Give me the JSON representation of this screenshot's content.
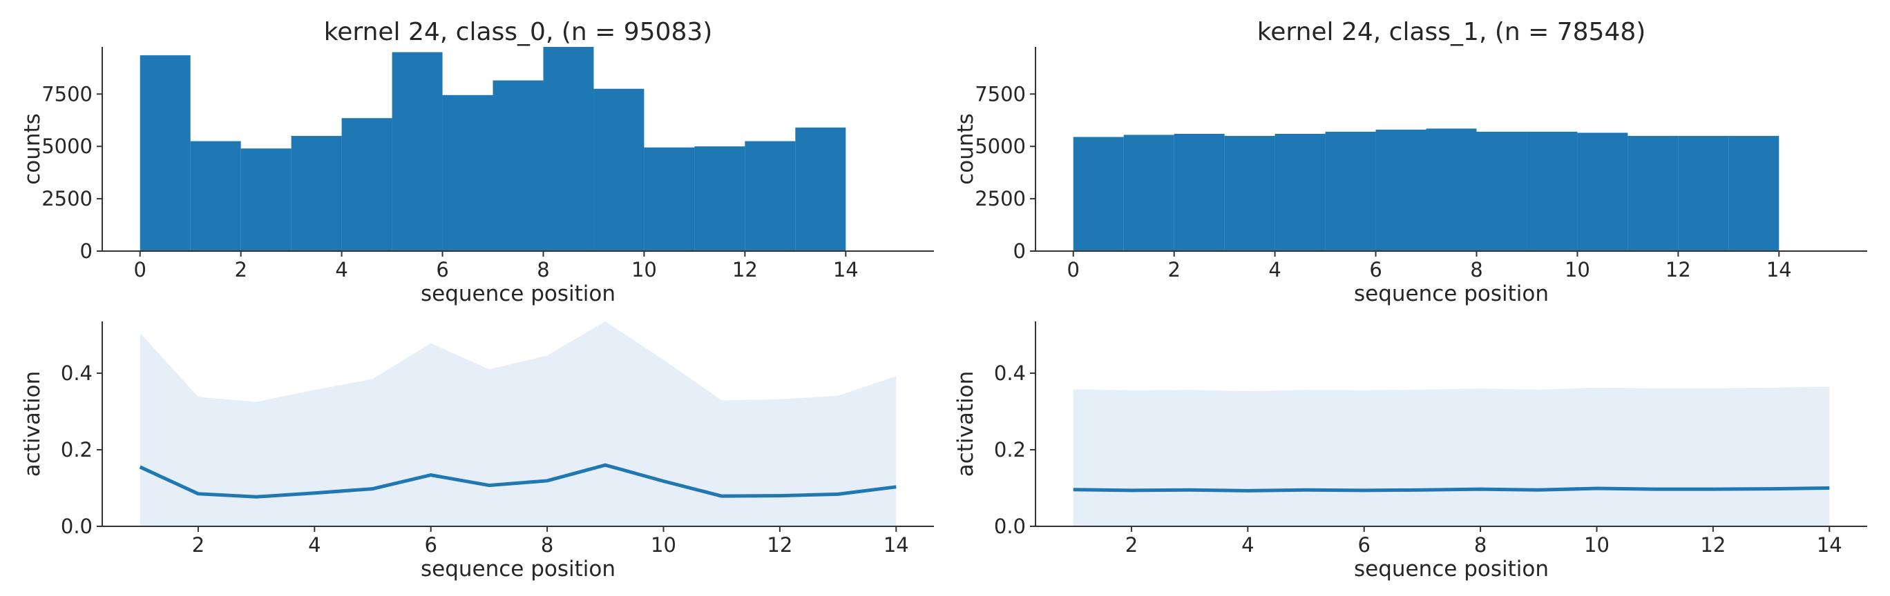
{
  "colors": {
    "bar": "#1f77b4",
    "line": "#1f77b4",
    "band": "#e6eff8"
  },
  "chart_data": [
    {
      "type": "bar",
      "title": "kernel 24, class_0, (n = 95083)",
      "xlabel": "sequence position",
      "ylabel": "counts",
      "bin_edges": [
        0,
        1,
        2,
        3,
        4,
        5,
        6,
        7,
        8,
        9,
        10,
        11,
        12,
        13,
        14
      ],
      "values": [
        9350,
        5250,
        4900,
        5500,
        6350,
        9500,
        7450,
        8150,
        9750,
        7750,
        4950,
        5000,
        5250,
        5900
      ],
      "xlim": [
        -0.75,
        15.75
      ],
      "ylim": [
        0,
        9750
      ],
      "xticks": [
        0,
        2,
        4,
        6,
        8,
        10,
        12,
        14
      ],
      "yticks": [
        0,
        2500,
        5000,
        7500
      ]
    },
    {
      "type": "bar",
      "title": "kernel 24, class_1, (n = 78548)",
      "xlabel": "sequence position",
      "ylabel": "counts",
      "bin_edges": [
        0,
        1,
        2,
        3,
        4,
        5,
        6,
        7,
        8,
        9,
        10,
        11,
        12,
        13,
        14
      ],
      "values": [
        5450,
        5550,
        5600,
        5500,
        5600,
        5700,
        5800,
        5850,
        5700,
        5700,
        5650,
        5500,
        5500,
        5500
      ],
      "xlim": [
        -0.75,
        15.75
      ],
      "ylim": [
        0,
        9750
      ],
      "xticks": [
        0,
        2,
        4,
        6,
        8,
        10,
        12,
        14
      ],
      "yticks": [
        0,
        2500,
        5000,
        7500
      ]
    },
    {
      "type": "line",
      "xlabel": "sequence position",
      "ylabel": "activation",
      "x": [
        1,
        2,
        3,
        4,
        5,
        6,
        7,
        8,
        9,
        10,
        11,
        12,
        13,
        14
      ],
      "mean": [
        0.155,
        0.085,
        0.077,
        0.087,
        0.098,
        0.134,
        0.107,
        0.119,
        0.16,
        0.118,
        0.079,
        0.08,
        0.084,
        0.103
      ],
      "upper": [
        0.505,
        0.338,
        0.325,
        0.356,
        0.385,
        0.478,
        0.41,
        0.446,
        0.535,
        0.435,
        0.329,
        0.332,
        0.341,
        0.392
      ],
      "xlim": [
        0.35,
        14.65
      ],
      "ylim": [
        0.0,
        0.535
      ],
      "xticks": [
        2,
        4,
        6,
        8,
        10,
        12,
        14
      ],
      "yticks": [
        0.0,
        0.2,
        0.4
      ],
      "ytick_labels": [
        "0.0",
        "0.2",
        "0.4"
      ]
    },
    {
      "type": "line",
      "xlabel": "sequence position",
      "ylabel": "activation",
      "x": [
        1,
        2,
        3,
        4,
        5,
        6,
        7,
        8,
        9,
        10,
        11,
        12,
        13,
        14
      ],
      "mean": [
        0.096,
        0.094,
        0.095,
        0.093,
        0.095,
        0.094,
        0.095,
        0.097,
        0.095,
        0.099,
        0.097,
        0.097,
        0.098,
        0.1
      ],
      "upper": [
        0.358,
        0.355,
        0.356,
        0.353,
        0.356,
        0.355,
        0.357,
        0.36,
        0.357,
        0.362,
        0.36,
        0.36,
        0.362,
        0.365
      ],
      "xlim": [
        0.35,
        14.65
      ],
      "ylim": [
        0.0,
        0.535
      ],
      "xticks": [
        2,
        4,
        6,
        8,
        10,
        12,
        14
      ],
      "yticks": [
        0.0,
        0.2,
        0.4
      ],
      "ytick_labels": [
        "0.0",
        "0.2",
        "0.4"
      ]
    }
  ]
}
